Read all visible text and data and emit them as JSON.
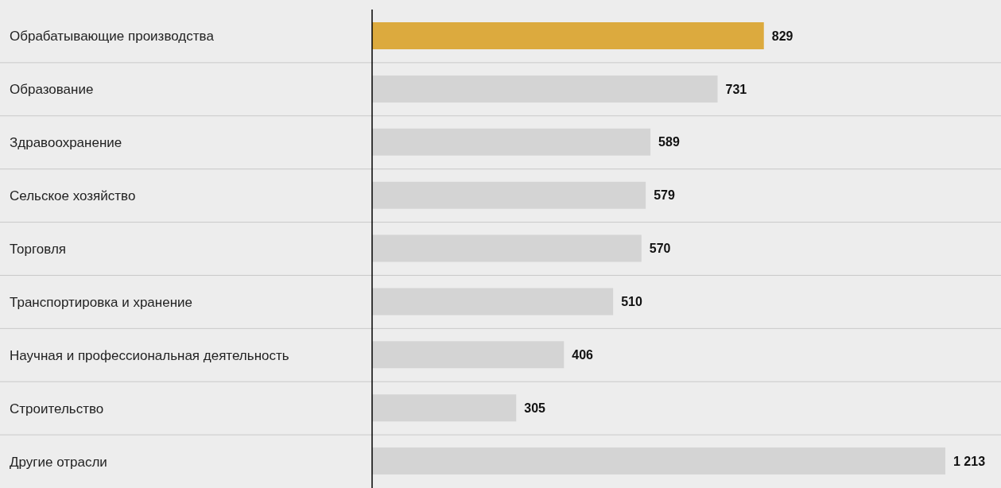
{
  "chart_data": {
    "type": "bar",
    "orientation": "horizontal",
    "categories": [
      "Обрабатывающие производства",
      "Образование",
      "Здравоохранение",
      "Сельское хозяйство",
      "Торговля",
      "Транспортировка и хранение",
      "Научная и профессиональная деятельность",
      "Строительство",
      "Другие отрасли"
    ],
    "values": [
      829,
      731,
      589,
      579,
      570,
      510,
      406,
      305,
      1213
    ],
    "colors": [
      "#dcaa3e",
      "#d4d4d4",
      "#d4d4d4",
      "#d4d4d4",
      "#d4d4d4",
      "#d4d4d4",
      "#d4d4d4",
      "#d4d4d4",
      "#d4d4d4"
    ],
    "value_labels": [
      "829",
      "731",
      "589",
      "579",
      "570",
      "510",
      "406",
      "305",
      "1 213"
    ],
    "grid": "y"
  }
}
